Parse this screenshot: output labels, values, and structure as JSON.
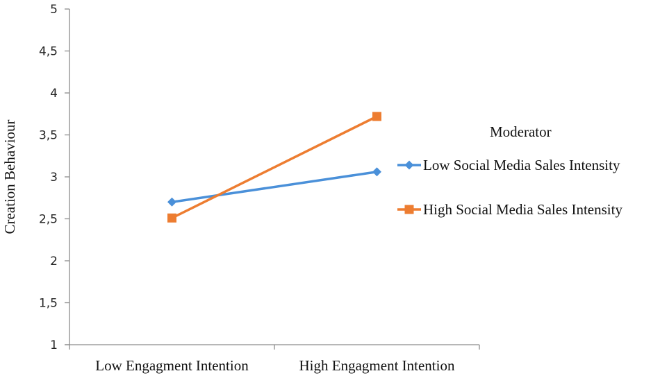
{
  "chart_data": {
    "type": "line",
    "title": "",
    "xlabel": "",
    "ylabel": "Creation Behaviour",
    "categories": [
      "Low Engagment Intention",
      "High Engagment Intention"
    ],
    "series": [
      {
        "name": "Low Social Media Sales Intensity",
        "values": [
          2.7,
          3.06
        ],
        "color": "#4a90d9",
        "marker": "diamond"
      },
      {
        "name": "High Social Media Sales Intensity",
        "values": [
          2.51,
          3.72
        ],
        "color": "#ed7d31",
        "marker": "square"
      }
    ],
    "ylim": [
      1,
      5
    ],
    "yticks": [
      "1",
      "1,5",
      "2",
      "2,5",
      "3",
      "3,5",
      "4",
      "4,5",
      "5"
    ],
    "grid": false,
    "legend": {
      "title": "Moderator",
      "position": "right"
    }
  }
}
